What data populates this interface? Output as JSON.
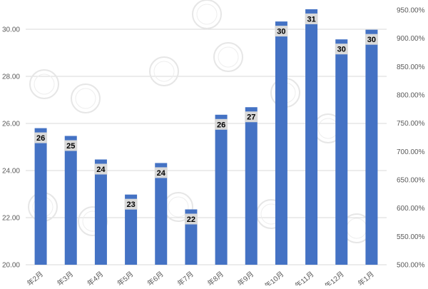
{
  "chart_data": {
    "type": "bar",
    "title": "",
    "xlabel": "",
    "ylabel": "",
    "categories": [
      "年2月",
      "年3月",
      "年4月",
      "年5月",
      "年6月",
      "年7月",
      "年8月",
      "年9月",
      "年10月",
      "年11月",
      "年12月",
      "年1月"
    ],
    "series": [
      {
        "values": [
          25.8,
          25.47,
          24.47,
          22.98,
          24.32,
          22.35,
          26.37,
          26.69,
          30.33,
          30.85,
          29.57,
          29.98
        ],
        "data_labels": [
          "26",
          "25",
          "24",
          "23",
          "24",
          "22",
          "26",
          "27",
          "30",
          "31",
          "30",
          "30"
        ]
      }
    ],
    "ylim": [
      20,
      31
    ],
    "y_ticks": [
      "20.00",
      "22.00",
      "24.00",
      "26.00",
      "28.00",
      "30.00"
    ],
    "y2lim": [
      500,
      950
    ],
    "y2_ticks": [
      "500.00%",
      "550.00%",
      "600.00%",
      "650.00%",
      "700.00%",
      "750.00%",
      "800.00%",
      "850.00%",
      "900.00%",
      "950.00%"
    ],
    "grid": true,
    "legend": "none",
    "colors": {
      "bar": "#4472C4",
      "label_bg": "#D9D9D9",
      "grid": "#D9D9D9",
      "tick_text": "#595959"
    }
  }
}
